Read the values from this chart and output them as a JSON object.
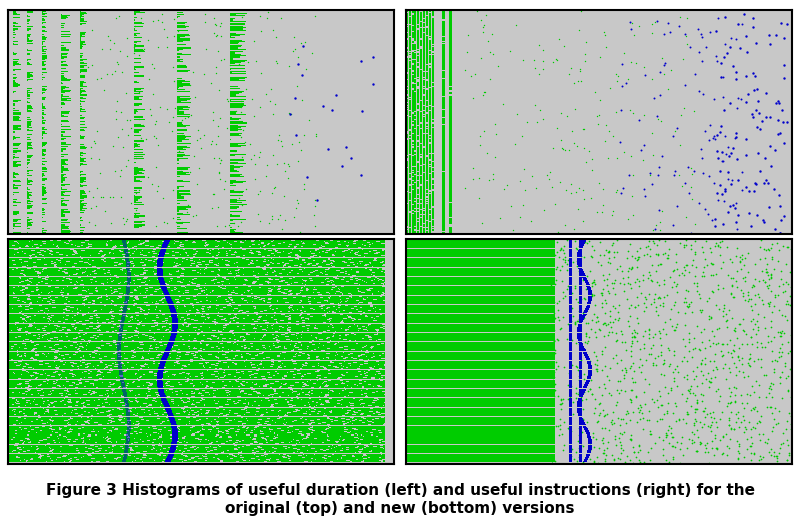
{
  "figure_width": 8.0,
  "figure_height": 5.23,
  "bg_color": "#c8c8c8",
  "panel_bg": "#c8c8c8",
  "white_bg": "#ffffff",
  "caption": "Figure 3 Histograms of useful duration (left) and useful instructions (right) for the\noriginal (top) and new (bottom) versions",
  "caption_fontsize": 11,
  "green_color": "#00cc00",
  "blue_color": "#0000cc",
  "dark_green": "#008800",
  "seed": 42,
  "n_rows": 200,
  "n_cols": 400
}
